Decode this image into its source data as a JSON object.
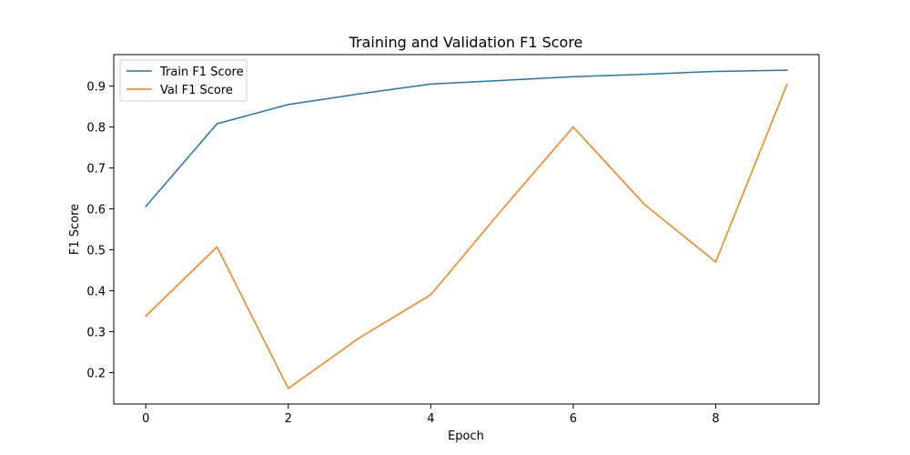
{
  "chart_data": {
    "type": "line",
    "title": "Training and Validation F1 Score",
    "xlabel": "Epoch",
    "ylabel": "F1 Score",
    "x": [
      0,
      1,
      2,
      3,
      4,
      5,
      6,
      7,
      8,
      9
    ],
    "xlim": [
      -0.45,
      9.45
    ],
    "ylim": [
      0.123,
      0.977
    ],
    "xticks": [
      0,
      2,
      4,
      6,
      8
    ],
    "yticks": [
      0.2,
      0.3,
      0.4,
      0.5,
      0.6,
      0.7,
      0.8,
      0.9
    ],
    "xtick_labels": [
      "0",
      "2",
      "4",
      "6",
      "8"
    ],
    "ytick_labels": [
      "0.2",
      "0.3",
      "0.4",
      "0.5",
      "0.6",
      "0.7",
      "0.8",
      "0.9"
    ],
    "grid": false,
    "legend_position": "top-left",
    "series": [
      {
        "name": "Train F1 Score",
        "color": "#1f77b4",
        "values": [
          0.606,
          0.808,
          0.855,
          0.881,
          0.905,
          0.914,
          0.923,
          0.929,
          0.936,
          0.939
        ]
      },
      {
        "name": "Val F1 Score",
        "color": "#ff7f0e",
        "values": [
          0.338,
          0.507,
          0.161,
          0.285,
          0.39,
          0.598,
          0.8,
          0.611,
          0.47,
          0.904
        ]
      }
    ]
  }
}
